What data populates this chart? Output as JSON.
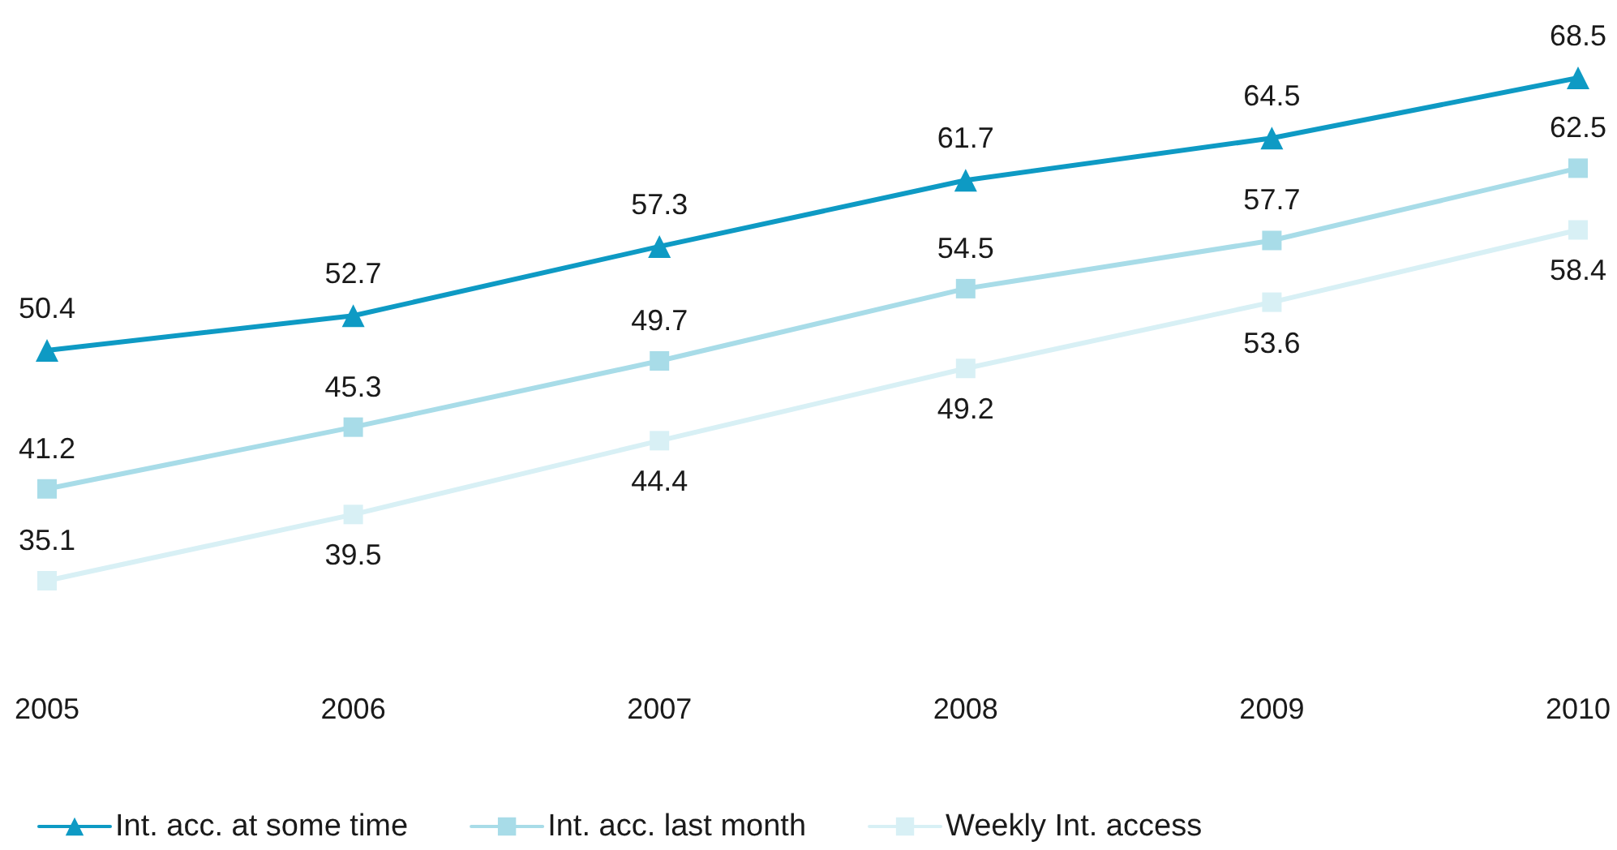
{
  "chart_data": {
    "type": "line",
    "categories": [
      "2005",
      "2006",
      "2007",
      "2008",
      "2009",
      "2010"
    ],
    "series": [
      {
        "name": "Int. acc. at some time",
        "color": "#0e9ac4",
        "marker": "triangle",
        "values": [
          50.4,
          52.7,
          57.3,
          61.7,
          64.5,
          68.5
        ]
      },
      {
        "name": "Int. acc. last month",
        "color": "#a8dce8",
        "marker": "square",
        "values": [
          41.2,
          45.3,
          49.7,
          54.5,
          57.7,
          62.5
        ]
      },
      {
        "name": "Weekly Int. access",
        "color": "#d8f0f5",
        "marker": "square",
        "values": [
          35.1,
          39.5,
          44.4,
          49.2,
          53.6,
          58.4
        ]
      }
    ],
    "data_labels": true,
    "legend": "bottom",
    "grid": false,
    "tick_labels": "x"
  }
}
